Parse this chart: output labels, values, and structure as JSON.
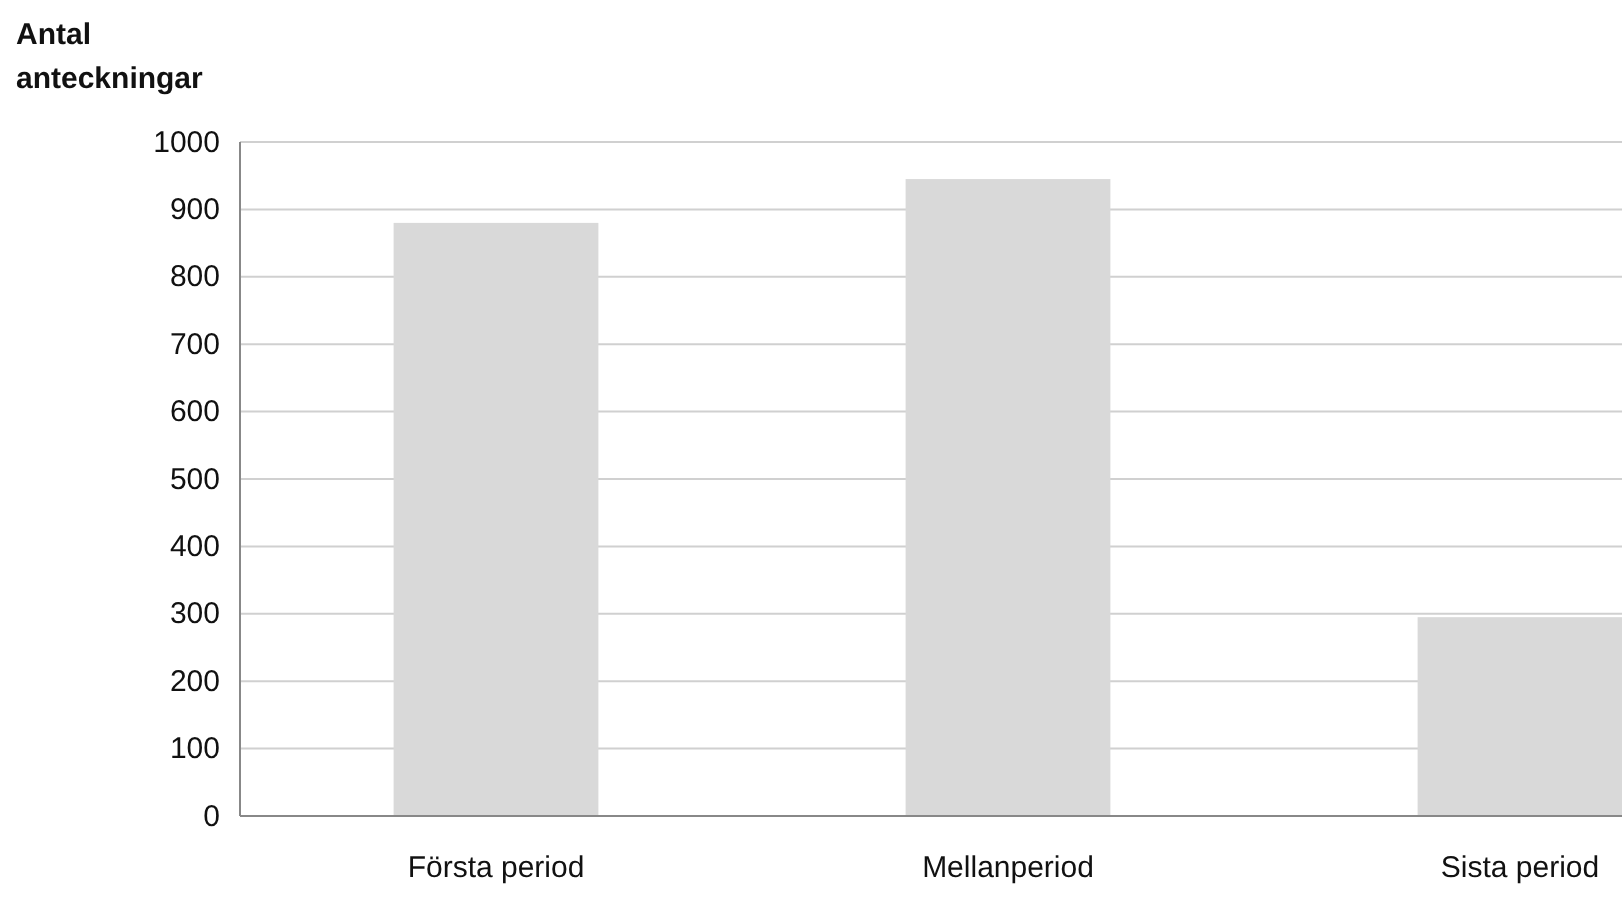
{
  "chart_data": {
    "type": "bar",
    "ylabel": "Antal anteckningar",
    "categories": [
      "Första period",
      "Mellanperiod",
      "Sista period"
    ],
    "values": [
      880,
      945,
      295
    ],
    "color": "#d9d9d9",
    "ylim": [
      0,
      1000
    ],
    "yticks": [
      0,
      100,
      200,
      300,
      400,
      500,
      600,
      700,
      800,
      900,
      1000
    ],
    "grid": "y"
  }
}
